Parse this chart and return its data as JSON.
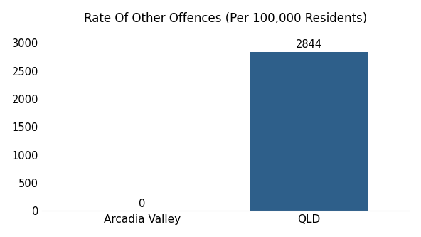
{
  "categories": [
    "Arcadia Valley",
    "QLD"
  ],
  "values": [
    0,
    2844
  ],
  "bar_color": "#2e5f8a",
  "title": "Rate Of Other Offences (Per 100,000 Residents)",
  "title_fontsize": 12,
  "ylim": [
    0,
    3200
  ],
  "yticks": [
    0,
    500,
    1000,
    1500,
    2000,
    2500,
    3000
  ],
  "bar_width": 0.7,
  "background_color": "#ffffff",
  "tick_fontsize": 10.5,
  "annotation_fontsize": 10.5,
  "xlabel_fontsize": 11
}
